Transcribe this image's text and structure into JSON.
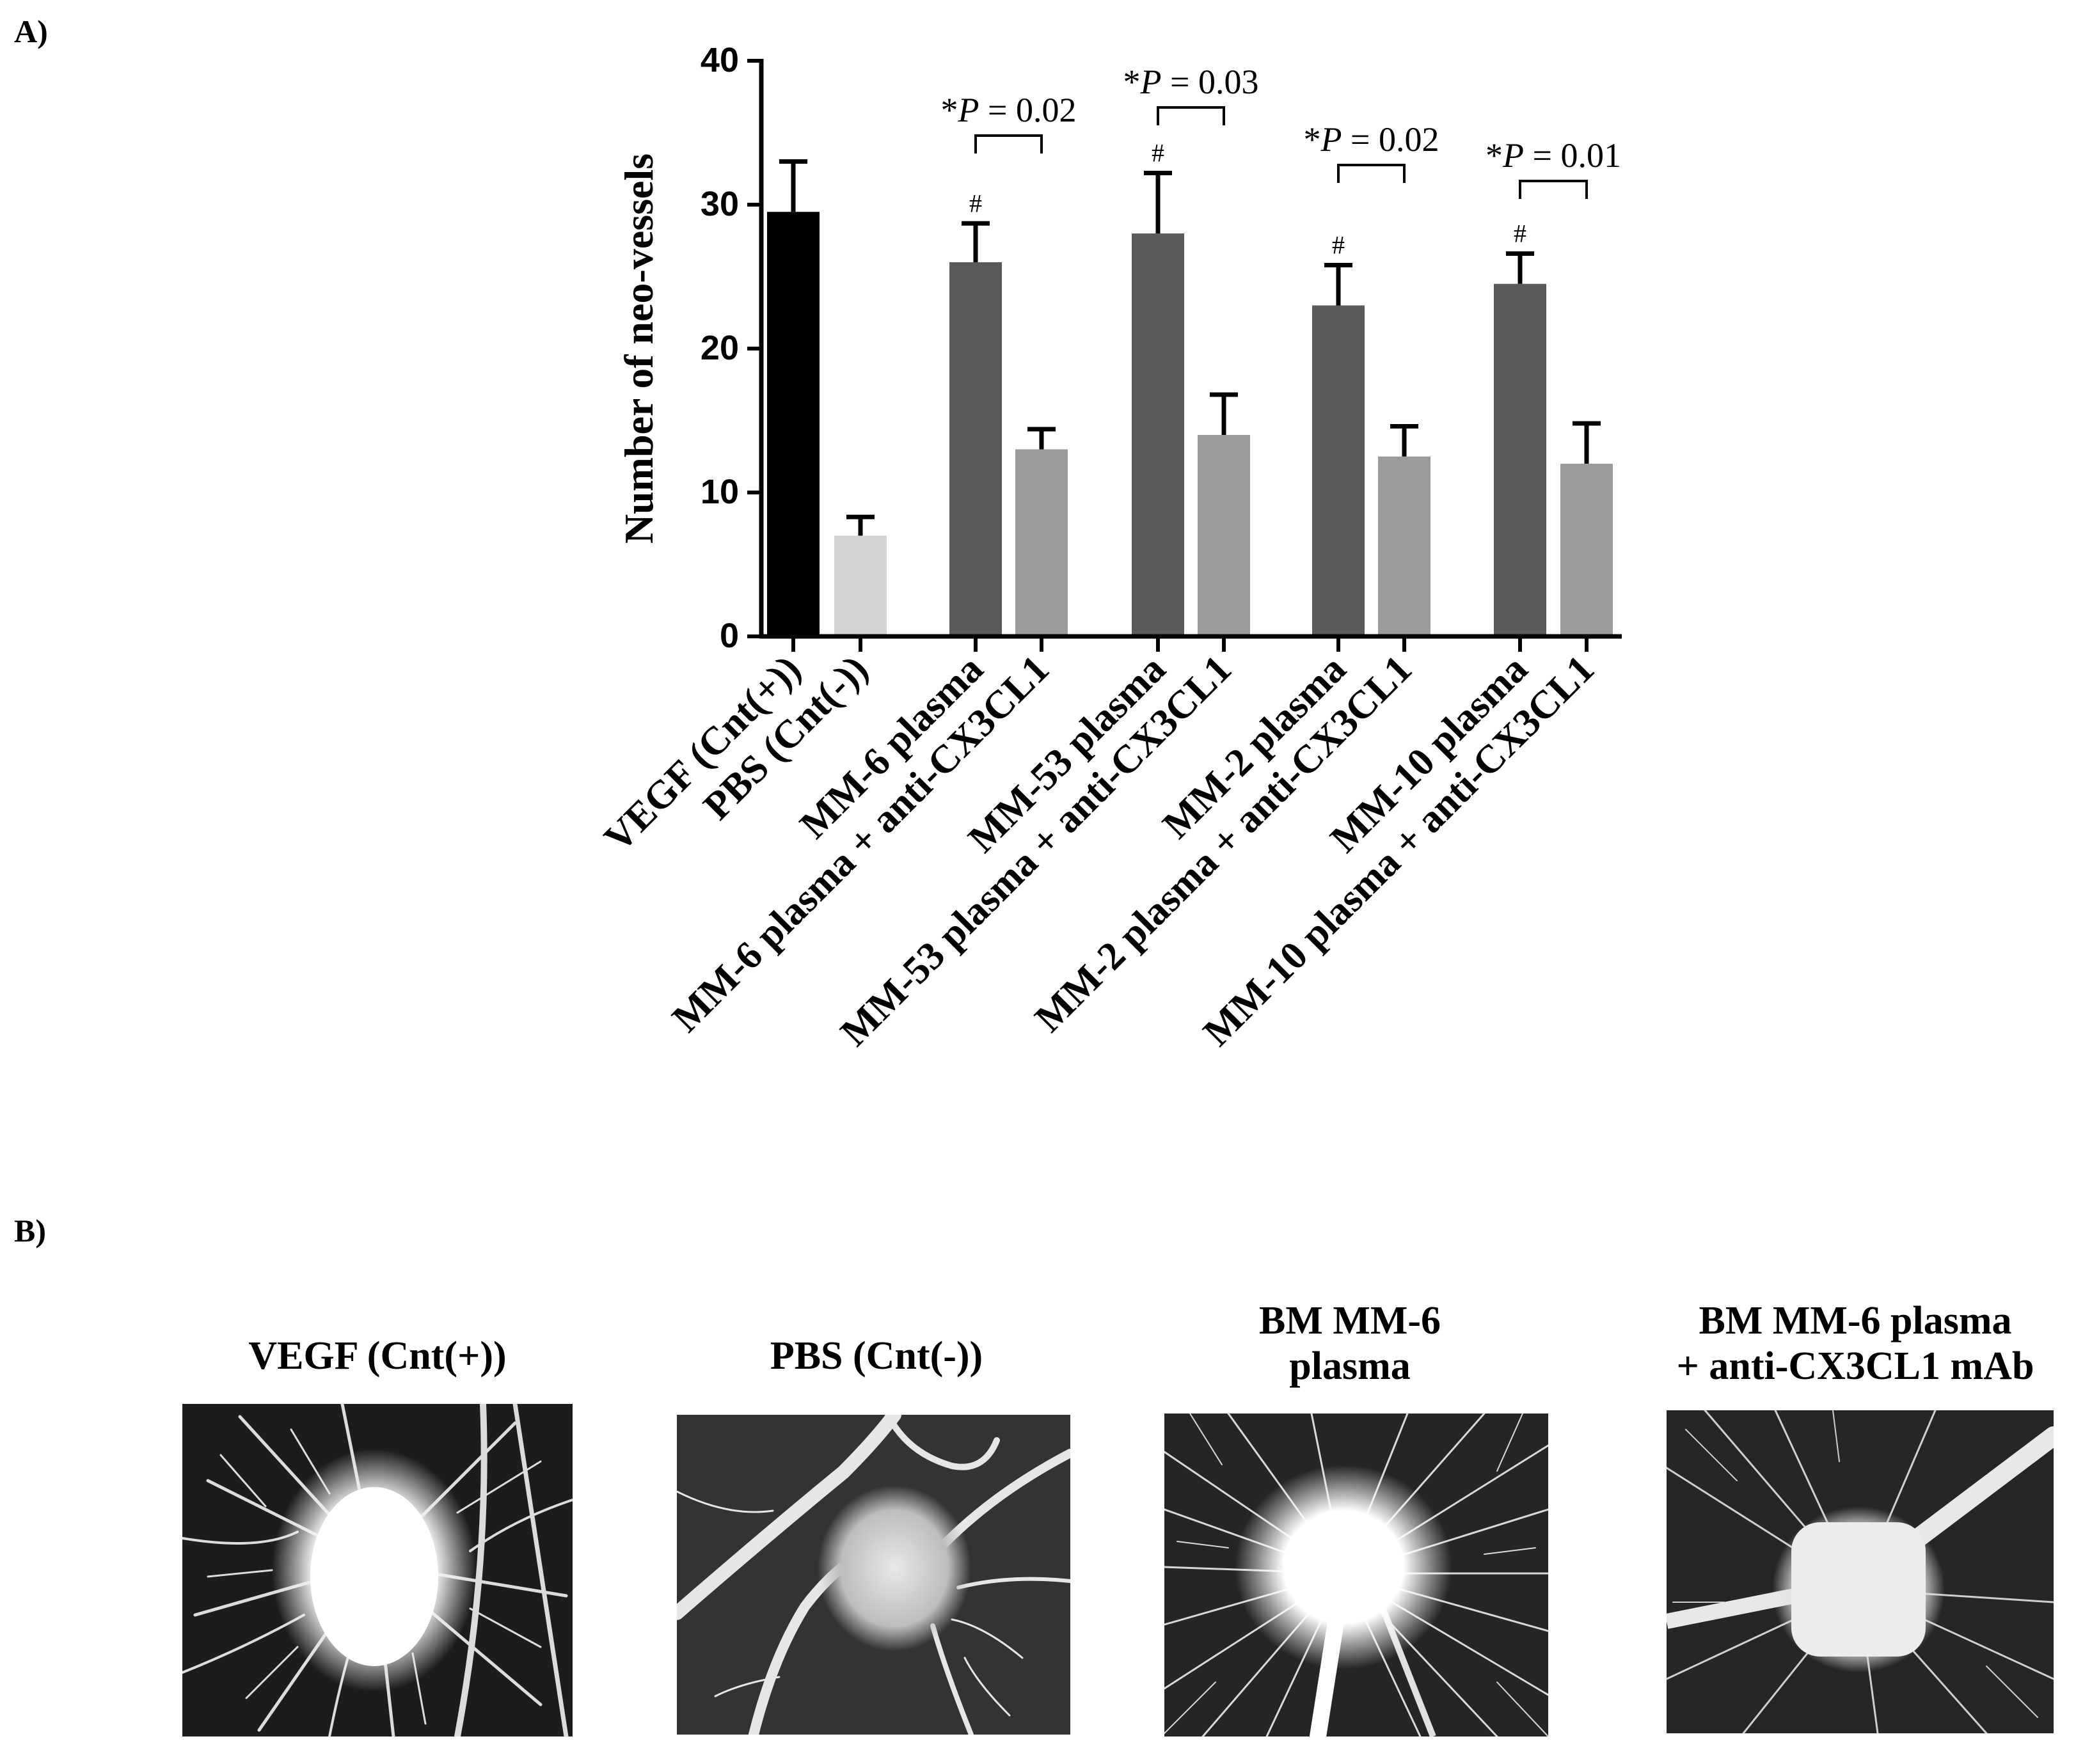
{
  "panel_a_label": "A)",
  "panel_b_label": "B)",
  "chart_data": {
    "type": "bar",
    "ylabel": "Number of neo-vessels",
    "ylim": [
      0,
      40
    ],
    "yticks": [
      0,
      10,
      20,
      30,
      40
    ],
    "error_bars": "upper, one-sided",
    "grid": false,
    "legend": "none",
    "categories": [
      "VEGF (Cnt(+))",
      "PBS (Cnt(-))",
      "MM-6 plasma",
      "MM-6 plasma + anti-CX3CL1",
      "MM-53 plasma",
      "MM-53 plasma + anti-CX3CL1",
      "MM-2 plasma",
      "MM-2 plasma + anti-CX3CL1",
      "MM-10 plasma",
      "MM-10 plasma + anti-CX3CL1"
    ],
    "values": [
      29.5,
      7,
      26,
      13,
      28,
      14,
      23,
      12.5,
      24.5,
      12
    ],
    "error": [
      3.5,
      1.3,
      2.7,
      1.4,
      4.2,
      2.8,
      2.8,
      2.1,
      2.1,
      2.8
    ],
    "colors": [
      "#000000",
      "#d3d3d3",
      "#5a5a5a",
      "#9b9b9b",
      "#5a5a5a",
      "#9b9b9b",
      "#5a5a5a",
      "#9b9b9b",
      "#5a5a5a",
      "#9b9b9b"
    ],
    "markers": [
      {
        "bar": 2,
        "text": "#"
      },
      {
        "bar": 4,
        "text": "#"
      },
      {
        "bar": 6,
        "text": "#"
      },
      {
        "bar": 8,
        "text": "#"
      }
    ],
    "comparisons": [
      {
        "from": 2,
        "to": 3,
        "star": "*",
        "p_symbol": "P",
        "p_text": " = 0.02"
      },
      {
        "from": 4,
        "to": 5,
        "star": "*",
        "p_symbol": "P",
        "p_text": " = 0.03"
      },
      {
        "from": 6,
        "to": 7,
        "star": "*",
        "p_symbol": "P",
        "p_text": " = 0.02"
      },
      {
        "from": 8,
        "to": 9,
        "star": "*",
        "p_symbol": "P",
        "p_text": " = 0.01"
      }
    ]
  },
  "images": [
    {
      "title_lines": [
        "VEGF (Cnt(+))"
      ],
      "depicts": "CAM assay: fine radiating neo-vessels around implant"
    },
    {
      "title_lines": [
        "PBS (Cnt(-))"
      ],
      "depicts": "CAM assay: few large vessels, sparse branching"
    },
    {
      "title_lines": [
        "BM MM-6",
        "plasma"
      ],
      "depicts": "CAM assay: dense radiating neo-vessels around implant"
    },
    {
      "title_lines": [
        "BM MM-6 plasma",
        "+ anti-CX3CL1 mAb"
      ],
      "depicts": "CAM assay: reduced neo-vessels around implant"
    }
  ]
}
